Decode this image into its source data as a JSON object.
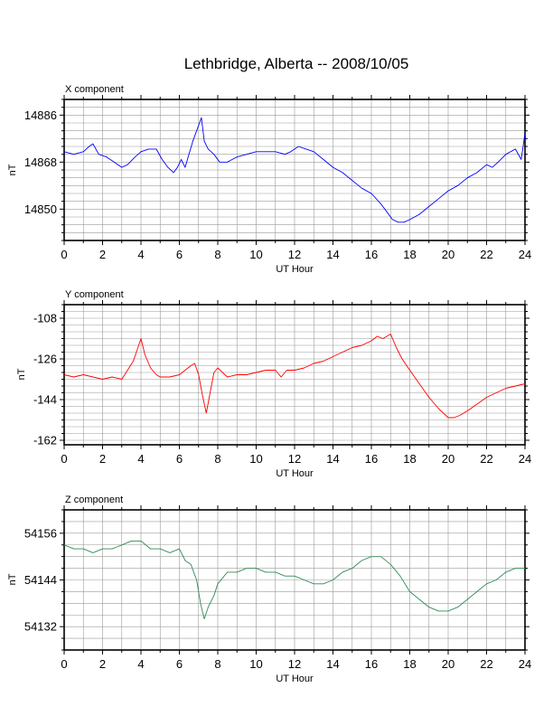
{
  "title": "Lethbridge, Alberta -- 2008/10/05",
  "chart_data": [
    {
      "type": "line",
      "title": "X component",
      "xlabel": "UT Hour",
      "ylabel": "nT",
      "xlim": [
        0,
        24
      ],
      "ylim": [
        14838,
        14892
      ],
      "x_ticks": [
        "0",
        "2",
        "4",
        "6",
        "8",
        "10",
        "12",
        "14",
        "16",
        "18",
        "20",
        "22",
        "24"
      ],
      "y_ticks": [
        "14850",
        "14868",
        "14886"
      ],
      "grid": true,
      "color": "#0000ff",
      "series": [
        {
          "x": [
            0,
            0.5,
            1,
            1.3,
            1.5,
            1.8,
            2.2,
            2.6,
            3,
            3.3,
            3.7,
            4,
            4.4,
            4.8,
            5.1,
            5.4,
            5.7,
            5.9,
            6.1,
            6.3,
            6.5,
            6.7,
            6.9,
            7.05,
            7.15,
            7.3,
            7.5,
            7.8,
            8.1,
            8.5,
            9,
            9.5,
            10,
            10.5,
            11,
            11.5,
            11.8,
            12.2,
            12.6,
            13,
            13.5,
            14,
            14.5,
            15,
            15.5,
            16,
            16.5,
            16.8,
            17.1,
            17.4,
            17.7,
            18,
            18.5,
            19,
            19.5,
            20,
            20.5,
            21,
            21.5,
            22,
            22.3,
            22.6,
            23,
            23.5,
            23.8,
            24
          ],
          "values": [
            14872,
            14871,
            14872,
            14874,
            14875,
            14871,
            14870,
            14868,
            14866,
            14867,
            14870,
            14872,
            14873,
            14873,
            14869,
            14866,
            14864,
            14866,
            14869,
            14866,
            14871,
            14876,
            14880,
            14883,
            14885,
            14876,
            14873,
            14871,
            14868,
            14868,
            14870,
            14871,
            14872,
            14872,
            14872,
            14871,
            14872,
            14874,
            14873,
            14872,
            14869,
            14866,
            14864,
            14861,
            14858,
            14856,
            14852,
            14849,
            14846,
            14845,
            14845,
            14846,
            14848,
            14851,
            14854,
            14857,
            14859,
            14862,
            14864,
            14867,
            14866,
            14868,
            14871,
            14873,
            14869,
            14879
          ]
        }
      ]
    },
    {
      "type": "line",
      "title": "Y component",
      "xlabel": "UT Hour",
      "ylabel": "nT",
      "xlim": [
        0,
        24
      ],
      "ylim": [
        -164,
        -102
      ],
      "x_ticks": [
        "0",
        "2",
        "4",
        "6",
        "8",
        "10",
        "12",
        "14",
        "16",
        "18",
        "20",
        "22",
        "24"
      ],
      "y_ticks": [
        "-162",
        "-144",
        "-126",
        "-108"
      ],
      "grid": true,
      "color": "#ff0000",
      "series": [
        {
          "x": [
            0,
            0.5,
            1,
            1.5,
            2,
            2.5,
            3,
            3.3,
            3.6,
            3.8,
            4,
            4.2,
            4.5,
            4.8,
            5,
            5.5,
            6,
            6.3,
            6.6,
            6.8,
            7,
            7.2,
            7.4,
            7.6,
            7.8,
            8,
            8.5,
            9,
            9.5,
            10,
            10.5,
            11,
            11.3,
            11.6,
            12,
            12.5,
            13,
            13.5,
            14,
            14.5,
            15,
            15.5,
            16,
            16.3,
            16.6,
            17,
            17.3,
            17.6,
            18,
            18.5,
            19,
            19.5,
            20,
            20.3,
            20.6,
            21,
            21.5,
            22,
            22.5,
            23,
            23.5,
            24
          ],
          "values": [
            -133,
            -134,
            -133,
            -134,
            -135,
            -134,
            -135,
            -131,
            -127,
            -122,
            -117,
            -124,
            -130,
            -133,
            -134,
            -134,
            -133,
            -131,
            -129,
            -128,
            -133,
            -142,
            -150,
            -141,
            -132,
            -130,
            -134,
            -133,
            -133,
            -132,
            -131,
            -131,
            -134,
            -131,
            -131,
            -130,
            -128,
            -127,
            -125,
            -123,
            -121,
            -120,
            -118,
            -116,
            -117,
            -115,
            -121,
            -126,
            -131,
            -137,
            -143,
            -148,
            -152,
            -152,
            -151,
            -149,
            -146,
            -143,
            -141,
            -139,
            -138,
            -137
          ]
        }
      ]
    },
    {
      "type": "line",
      "title": "Z component",
      "xlabel": "UT Hour",
      "ylabel": "nT",
      "xlim": [
        0,
        24
      ],
      "ylim": [
        54126,
        54162
      ],
      "x_ticks": [
        "0",
        "2",
        "4",
        "6",
        "8",
        "10",
        "12",
        "14",
        "16",
        "18",
        "20",
        "22",
        "24"
      ],
      "y_ticks": [
        "54132",
        "54144",
        "54156"
      ],
      "grid": true,
      "color": "#2e8b57",
      "series": [
        {
          "x": [
            0,
            0.5,
            1,
            1.5,
            2,
            2.5,
            3,
            3.5,
            4,
            4.5,
            5,
            5.5,
            6,
            6.3,
            6.6,
            6.9,
            7.1,
            7.3,
            7.5,
            7.8,
            8,
            8.5,
            9,
            9.5,
            10,
            10.5,
            11,
            11.5,
            12,
            12.5,
            13,
            13.5,
            14,
            14.5,
            15,
            15.5,
            16,
            16.5,
            17,
            17.5,
            18,
            18.5,
            19,
            19.5,
            20,
            20.5,
            21,
            21.5,
            22,
            22.5,
            23,
            23.5,
            24
          ],
          "values": [
            54153,
            54152,
            54152,
            54151,
            54152,
            54152,
            54153,
            54154,
            54154,
            54152,
            54152,
            54151,
            54152,
            54149,
            54148,
            54144,
            54138,
            54134,
            54137,
            54140,
            54143,
            54146,
            54146,
            54147,
            54147,
            54146,
            54146,
            54145,
            54145,
            54144,
            54143,
            54143,
            54144,
            54146,
            54147,
            54149,
            54150,
            54150,
            54148,
            54145,
            54141,
            54139,
            54137,
            54136,
            54136,
            54137,
            54139,
            54141,
            54143,
            54144,
            54146,
            54147,
            54147
          ]
        }
      ]
    }
  ]
}
